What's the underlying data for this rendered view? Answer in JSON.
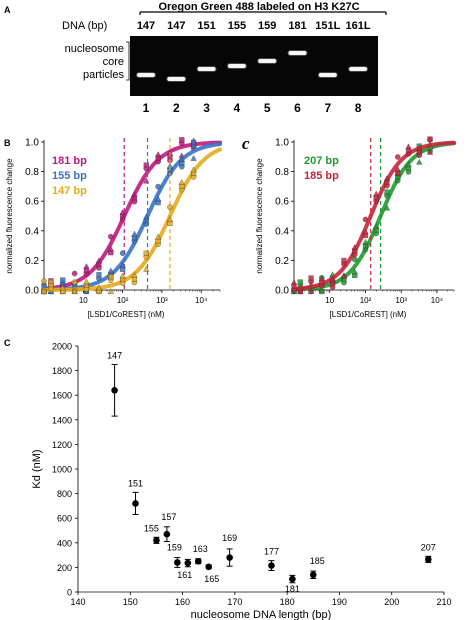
{
  "panelA": {
    "letter": "A",
    "header": "Oregon Green 488 labeled on H3 K27C",
    "dna_label": "DNA (bp)",
    "dna_values": [
      "147",
      "147",
      "151",
      "155",
      "159",
      "181",
      "151L",
      "161L"
    ],
    "side_label": [
      "nucleosome",
      "core",
      "particles"
    ],
    "lanes": [
      "1",
      "2",
      "3",
      "4",
      "5",
      "6",
      "7",
      "8"
    ],
    "band_offsets": [
      0.7,
      0.78,
      0.58,
      0.52,
      0.42,
      0.26,
      0.7,
      0.58
    ]
  },
  "panelB_letter": "B",
  "panelC_italic": "c",
  "panelC_letter": "C",
  "chart_data": [
    {
      "type": "line",
      "panel": "B",
      "xscale": "log",
      "xlabel": "[LSD1/CoREST] (nM)",
      "ylabel": "normalized fluorescence change",
      "ylim": [
        0,
        1.0
      ],
      "yticks": [
        "0.0",
        "0.2",
        "0.4",
        "0.6",
        "0.8",
        "1.0"
      ],
      "xticks": [
        "10",
        "10²",
        "10³",
        "10⁴"
      ],
      "x_range": [
        1,
        30000
      ],
      "series": [
        {
          "name": "181 bp",
          "color": "#c0187e",
          "kd": 110
        },
        {
          "name": "155 bp",
          "color": "#3a73c4",
          "kd": 430
        },
        {
          "name": "147 bp",
          "color": "#e6ab1c",
          "kd": 1600
        }
      ]
    },
    {
      "type": "line",
      "panel": "c",
      "xscale": "log",
      "xlabel": "[LSD1/CoREST] (nM)",
      "ylabel": "normalized fluorescence change",
      "ylim": [
        0,
        1.0
      ],
      "yticks": [
        "0.0",
        "0.2",
        "0.4",
        "0.6",
        "0.8",
        "1.0"
      ],
      "xticks": [
        "10",
        "10²",
        "10³",
        "10⁴"
      ],
      "x_range": [
        1,
        30000
      ],
      "series": [
        {
          "name": "207 bp",
          "color": "#1f9a2e",
          "kd": 265
        },
        {
          "name": "185 bp",
          "color": "#c8253c",
          "kd": 140
        }
      ]
    },
    {
      "type": "scatter",
      "panel": "C",
      "xlabel": "nucleosome DNA length (bp)",
      "ylabel": "Kd (nM)",
      "xlim": [
        140,
        210
      ],
      "ylim": [
        0,
        2000
      ],
      "xticks": [
        140,
        150,
        160,
        170,
        180,
        190,
        200,
        210
      ],
      "yticks": [
        0,
        200,
        400,
        600,
        800,
        1000,
        1200,
        1400,
        1600,
        1800,
        2000
      ],
      "points": [
        {
          "x": 147,
          "y": 1640,
          "err": 210,
          "label": "147"
        },
        {
          "x": 151,
          "y": 720,
          "err": 90,
          "label": "151"
        },
        {
          "x": 155,
          "y": 420,
          "err": 25,
          "label": "155"
        },
        {
          "x": 157,
          "y": 470,
          "err": 60,
          "label": "157"
        },
        {
          "x": 159,
          "y": 240,
          "err": 40,
          "label": "159"
        },
        {
          "x": 161,
          "y": 235,
          "err": 30,
          "label": "161"
        },
        {
          "x": 163,
          "y": 250,
          "err": 20,
          "label": "163"
        },
        {
          "x": 165,
          "y": 205,
          "err": 15,
          "label": "165"
        },
        {
          "x": 169,
          "y": 280,
          "err": 70,
          "label": "169"
        },
        {
          "x": 177,
          "y": 215,
          "err": 40,
          "label": "177"
        },
        {
          "x": 181,
          "y": 105,
          "err": 30,
          "label": "181"
        },
        {
          "x": 185,
          "y": 140,
          "err": 30,
          "label": "185"
        },
        {
          "x": 207,
          "y": 265,
          "err": 25,
          "label": "207"
        }
      ]
    }
  ]
}
